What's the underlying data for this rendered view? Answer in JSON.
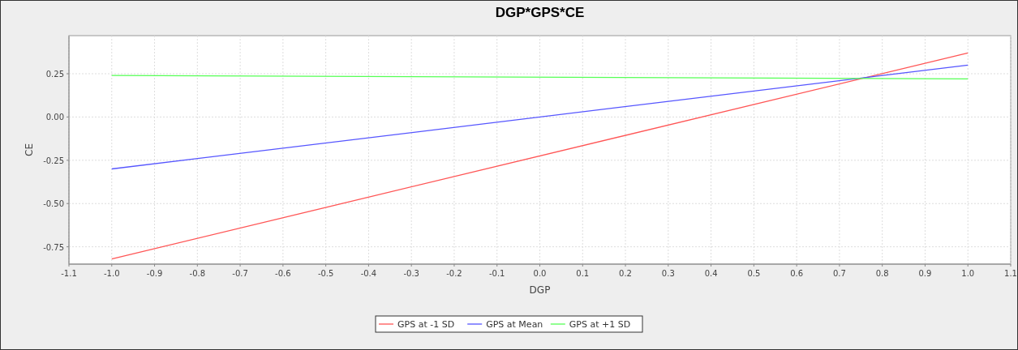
{
  "chart_data": {
    "type": "line",
    "title": "DGP*GPS*CE",
    "xlabel": "DGP",
    "ylabel": "CE",
    "x": [
      -1.0,
      1.0
    ],
    "series": [
      {
        "name": "GPS at -1 SD",
        "color": "#ff5555",
        "values": [
          -0.82,
          0.37
        ]
      },
      {
        "name": "GPS at Mean",
        "color": "#5555ff",
        "values": [
          -0.3,
          0.3
        ]
      },
      {
        "name": "GPS at +1 SD",
        "color": "#55ff55",
        "values": [
          0.24,
          0.22
        ]
      }
    ],
    "xlim": [
      -1.1,
      1.1
    ],
    "xticks": [
      -1.1,
      {
        "value": -1,
        "label": "-1.0"
      },
      -0.9,
      -0.8,
      -0.7,
      -0.6,
      -0.5,
      -0.4,
      -0.3,
      -0.2,
      -0.1,
      {
        "value": 0,
        "label": "0.0"
      },
      0.1,
      0.2,
      0.3,
      0.4,
      0.5,
      0.6,
      0.7,
      0.8,
      0.9,
      {
        "value": 1,
        "label": "1.0"
      },
      1.1
    ],
    "ylim": [
      -0.85,
      0.47
    ],
    "yticks": [
      {
        "value": -0.75,
        "label": "-0.75"
      },
      {
        "value": -0.5,
        "label": "-0.50"
      },
      {
        "value": -0.25,
        "label": "-0.25"
      },
      {
        "value": 0,
        "label": "0.00"
      },
      {
        "value": 0.25,
        "label": "0.25"
      }
    ],
    "grid": true,
    "legend": "bottom",
    "marker": "none",
    "line_style": "solid"
  }
}
